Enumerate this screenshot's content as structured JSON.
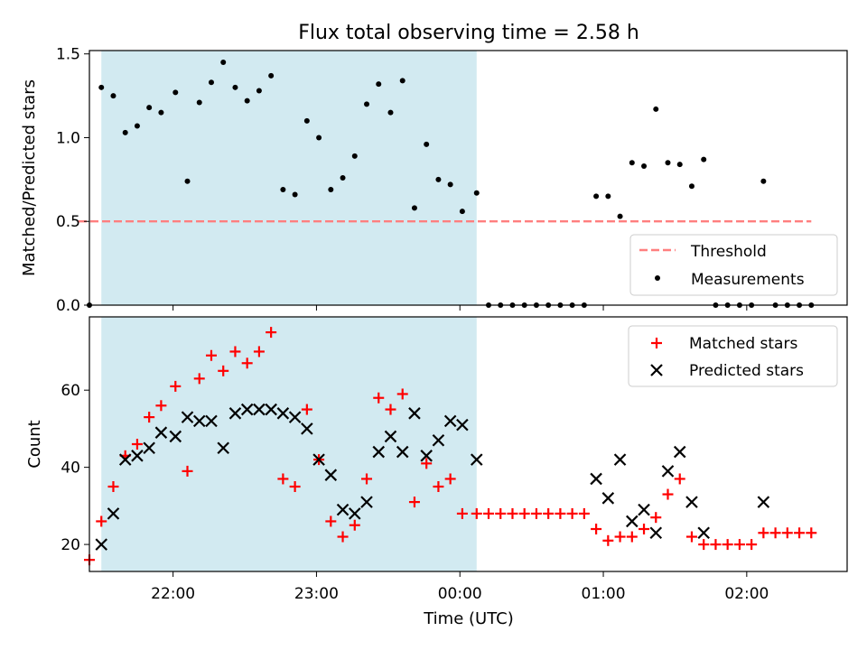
{
  "figure": {
    "title": "Flux total observing time = 2.58 h"
  },
  "colors": {
    "shade": "#add8e6",
    "threshold": "#ff7f7f",
    "matched": "#ff0000",
    "predicted": "#000000",
    "measurement": "#000000"
  },
  "chart_data": [
    {
      "type": "scatter",
      "panel": "top",
      "ylabel": "Matched/Predicted stars",
      "xlim": [
        "21:25",
        "02:42"
      ],
      "ylim": [
        0,
        1.52
      ],
      "yticks": [
        "0.0",
        "0.5",
        "1.0",
        "1.5"
      ],
      "shaded_interval": [
        "21:30",
        "00:07"
      ],
      "threshold": {
        "name": "Threshold",
        "value": 0.5,
        "x_range": [
          "21:25",
          "02:27"
        ],
        "style": "dashed"
      },
      "legend": {
        "position": "lower-right",
        "entries": [
          "Threshold",
          "Measurements"
        ]
      },
      "series": [
        {
          "name": "Measurements",
          "marker": "dot",
          "points": [
            [
              "21:25",
              0.0
            ],
            [
              "21:30",
              1.3
            ],
            [
              "21:35",
              1.25
            ],
            [
              "21:40",
              1.03
            ],
            [
              "21:45",
              1.07
            ],
            [
              "21:50",
              1.18
            ],
            [
              "21:55",
              1.15
            ],
            [
              "22:01",
              1.27
            ],
            [
              "22:06",
              0.74
            ],
            [
              "22:11",
              1.21
            ],
            [
              "22:16",
              1.33
            ],
            [
              "22:21",
              1.45
            ],
            [
              "22:26",
              1.3
            ],
            [
              "22:31",
              1.22
            ],
            [
              "22:36",
              1.28
            ],
            [
              "22:41",
              1.37
            ],
            [
              "22:46",
              0.69
            ],
            [
              "22:51",
              0.66
            ],
            [
              "22:56",
              1.1
            ],
            [
              "23:01",
              1.0
            ],
            [
              "23:06",
              0.69
            ],
            [
              "23:11",
              0.76
            ],
            [
              "23:16",
              0.89
            ],
            [
              "23:21",
              1.2
            ],
            [
              "23:26",
              1.32
            ],
            [
              "23:31",
              1.15
            ],
            [
              "23:36",
              1.34
            ],
            [
              "23:41",
              0.58
            ],
            [
              "23:46",
              0.96
            ],
            [
              "23:51",
              0.75
            ],
            [
              "23:56",
              0.72
            ],
            [
              "00:01",
              0.56
            ],
            [
              "00:07",
              0.67
            ],
            [
              "00:12",
              0.0
            ],
            [
              "00:17",
              0.0
            ],
            [
              "00:22",
              0.0
            ],
            [
              "00:27",
              0.0
            ],
            [
              "00:32",
              0.0
            ],
            [
              "00:37",
              0.0
            ],
            [
              "00:42",
              0.0
            ],
            [
              "00:47",
              0.0
            ],
            [
              "00:52",
              0.0
            ],
            [
              "00:57",
              0.65
            ],
            [
              "01:02",
              0.65
            ],
            [
              "01:07",
              0.53
            ],
            [
              "01:12",
              0.85
            ],
            [
              "01:17",
              0.83
            ],
            [
              "01:22",
              1.17
            ],
            [
              "01:27",
              0.85
            ],
            [
              "01:32",
              0.84
            ],
            [
              "01:37",
              0.71
            ],
            [
              "01:42",
              0.87
            ],
            [
              "01:47",
              0.0
            ],
            [
              "01:52",
              0.0
            ],
            [
              "01:57",
              0.0
            ],
            [
              "02:02",
              0.0
            ],
            [
              "02:07",
              0.74
            ],
            [
              "02:12",
              0.0
            ],
            [
              "02:17",
              0.0
            ],
            [
              "02:22",
              0.0
            ],
            [
              "02:27",
              0.0
            ]
          ]
        }
      ]
    },
    {
      "type": "scatter",
      "panel": "bottom",
      "xlabel": "Time (UTC)",
      "ylabel": "Count",
      "xlim": [
        "21:25",
        "02:42"
      ],
      "ylim": [
        13,
        79
      ],
      "xticks": [
        "22:00",
        "23:00",
        "00:00",
        "01:00",
        "02:00"
      ],
      "yticks": [
        "20",
        "40",
        "60"
      ],
      "shaded_interval": [
        "21:30",
        "00:07"
      ],
      "legend": {
        "position": "upper-right",
        "entries": [
          "Matched stars",
          "Predicted stars"
        ]
      },
      "series": [
        {
          "name": "Matched stars",
          "marker": "plus",
          "points": [
            [
              "21:25",
              16
            ],
            [
              "21:30",
              26
            ],
            [
              "21:35",
              35
            ],
            [
              "21:40",
              43
            ],
            [
              "21:45",
              46
            ],
            [
              "21:50",
              53
            ],
            [
              "21:55",
              56
            ],
            [
              "22:01",
              61
            ],
            [
              "22:06",
              39
            ],
            [
              "22:11",
              63
            ],
            [
              "22:16",
              69
            ],
            [
              "22:21",
              65
            ],
            [
              "22:26",
              70
            ],
            [
              "22:31",
              67
            ],
            [
              "22:36",
              70
            ],
            [
              "22:41",
              75
            ],
            [
              "22:46",
              37
            ],
            [
              "22:51",
              35
            ],
            [
              "22:56",
              55
            ],
            [
              "23:01",
              42
            ],
            [
              "23:06",
              26
            ],
            [
              "23:11",
              22
            ],
            [
              "23:16",
              25
            ],
            [
              "23:21",
              37
            ],
            [
              "23:26",
              58
            ],
            [
              "23:31",
              55
            ],
            [
              "23:36",
              59
            ],
            [
              "23:41",
              31
            ],
            [
              "23:46",
              41
            ],
            [
              "23:51",
              35
            ],
            [
              "23:56",
              37
            ],
            [
              "00:01",
              28
            ],
            [
              "00:07",
              28
            ],
            [
              "00:12",
              28
            ],
            [
              "00:17",
              28
            ],
            [
              "00:22",
              28
            ],
            [
              "00:27",
              28
            ],
            [
              "00:32",
              28
            ],
            [
              "00:37",
              28
            ],
            [
              "00:42",
              28
            ],
            [
              "00:47",
              28
            ],
            [
              "00:52",
              28
            ],
            [
              "00:57",
              24
            ],
            [
              "01:02",
              21
            ],
            [
              "01:07",
              22
            ],
            [
              "01:12",
              22
            ],
            [
              "01:17",
              24
            ],
            [
              "01:22",
              27
            ],
            [
              "01:27",
              33
            ],
            [
              "01:32",
              37
            ],
            [
              "01:37",
              22
            ],
            [
              "01:42",
              20
            ],
            [
              "01:47",
              20
            ],
            [
              "01:52",
              20
            ],
            [
              "01:57",
              20
            ],
            [
              "02:02",
              20
            ],
            [
              "02:07",
              23
            ],
            [
              "02:12",
              23
            ],
            [
              "02:17",
              23
            ],
            [
              "02:22",
              23
            ],
            [
              "02:27",
              23
            ]
          ]
        },
        {
          "name": "Predicted stars",
          "marker": "x",
          "points": [
            [
              "21:30",
              20
            ],
            [
              "21:35",
              28
            ],
            [
              "21:40",
              42
            ],
            [
              "21:45",
              43
            ],
            [
              "21:50",
              45
            ],
            [
              "21:55",
              49
            ],
            [
              "22:01",
              48
            ],
            [
              "22:06",
              53
            ],
            [
              "22:11",
              52
            ],
            [
              "22:16",
              52
            ],
            [
              "22:21",
              45
            ],
            [
              "22:26",
              54
            ],
            [
              "22:31",
              55
            ],
            [
              "22:36",
              55
            ],
            [
              "22:41",
              55
            ],
            [
              "22:46",
              54
            ],
            [
              "22:51",
              53
            ],
            [
              "22:56",
              50
            ],
            [
              "23:01",
              42
            ],
            [
              "23:06",
              38
            ],
            [
              "23:11",
              29
            ],
            [
              "23:16",
              28
            ],
            [
              "23:21",
              31
            ],
            [
              "23:26",
              44
            ],
            [
              "23:31",
              48
            ],
            [
              "23:36",
              44
            ],
            [
              "23:41",
              54
            ],
            [
              "23:46",
              43
            ],
            [
              "23:51",
              47
            ],
            [
              "23:56",
              52
            ],
            [
              "00:01",
              51
            ],
            [
              "00:07",
              42
            ],
            [
              "00:57",
              37
            ],
            [
              "01:02",
              32
            ],
            [
              "01:07",
              42
            ],
            [
              "01:12",
              26
            ],
            [
              "01:17",
              29
            ],
            [
              "01:22",
              23
            ],
            [
              "01:27",
              39
            ],
            [
              "01:32",
              44
            ],
            [
              "01:37",
              31
            ],
            [
              "01:42",
              23
            ],
            [
              "02:07",
              31
            ]
          ]
        }
      ]
    }
  ]
}
